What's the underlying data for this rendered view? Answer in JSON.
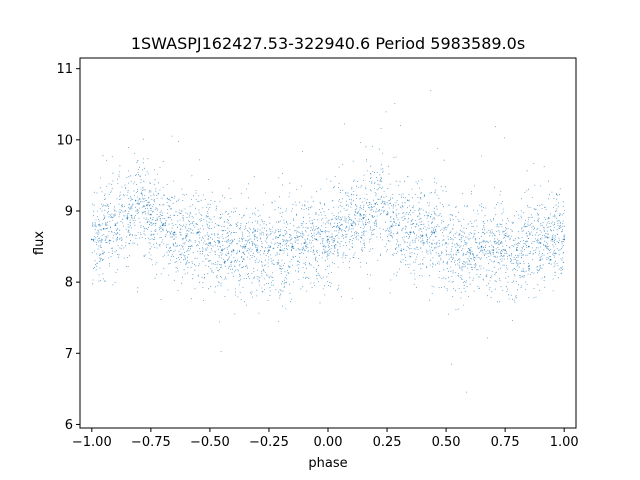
{
  "chart_data": {
    "type": "scatter",
    "title": "1SWASPJ162427.53-322940.6 Period 5983589.0s",
    "xlabel": "phase",
    "ylabel": "flux",
    "xlim": [
      -1.05,
      1.05
    ],
    "ylim": [
      5.95,
      11.15
    ],
    "xticks": [
      -1.0,
      -0.75,
      -0.5,
      -0.25,
      0.0,
      0.25,
      0.5,
      0.75,
      1.0
    ],
    "xtick_labels": [
      "−1.00",
      "−0.75",
      "−0.50",
      "−0.25",
      "0.00",
      "0.25",
      "0.50",
      "0.75",
      "1.00"
    ],
    "yticks": [
      6,
      7,
      8,
      9,
      10,
      11
    ],
    "ytick_labels": [
      "6",
      "7",
      "8",
      "9",
      "10",
      "11"
    ],
    "grid": false,
    "marker_color": "#1f77b4",
    "series": [
      {
        "x": [
          -1.0,
          -0.95,
          -0.9,
          -0.85,
          -0.8,
          -0.75,
          -0.7,
          -0.65,
          -0.6,
          -0.55,
          -0.5,
          -0.45,
          -0.4,
          -0.35,
          -0.3,
          -0.25,
          -0.2,
          -0.15,
          -0.1,
          -0.05,
          0.0,
          0.05,
          0.1,
          0.15,
          0.2,
          0.25,
          0.3,
          0.35,
          0.4,
          0.45,
          0.5,
          0.55,
          0.6,
          0.65,
          0.7,
          0.75,
          0.8,
          0.85,
          0.9,
          0.95,
          1.0
        ],
        "y": [
          8.6,
          8.75,
          8.8,
          8.9,
          9.1,
          8.95,
          8.8,
          8.7,
          8.65,
          8.7,
          8.55,
          8.45,
          8.45,
          8.5,
          8.45,
          8.45,
          8.45,
          8.5,
          8.55,
          8.6,
          8.6,
          8.75,
          8.8,
          8.9,
          9.1,
          8.95,
          8.8,
          8.7,
          8.65,
          8.7,
          8.55,
          8.45,
          8.45,
          8.5,
          8.45,
          8.45,
          8.45,
          8.5,
          8.55,
          8.6,
          8.6
        ]
      }
    ]
  }
}
